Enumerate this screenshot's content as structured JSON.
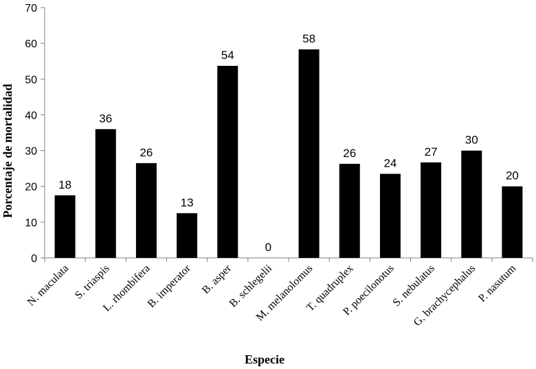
{
  "chart_data": {
    "type": "bar",
    "title": "",
    "xlabel": "Especie",
    "ylabel": "Porcentaje de mortalidad",
    "ylim": [
      0,
      70
    ],
    "yticks": [
      0,
      10,
      20,
      30,
      40,
      50,
      60,
      70
    ],
    "grid": false,
    "bar_color": "#000000",
    "categories": [
      "N. maculata",
      "S. triaspis",
      "L. rhombifera",
      "B. imperator",
      "B. asper",
      "B. schlegelii",
      "M. melanolomus",
      "T. quadruplex",
      "P. poecilonotus",
      "S. nebulatus",
      "G. brachycephalus",
      "P. nasutum"
    ],
    "values": [
      17.5,
      36,
      26.5,
      12.5,
      53.7,
      0,
      58.3,
      26.3,
      23.5,
      26.7,
      30,
      20
    ],
    "data_labels": [
      "18",
      "36",
      "26",
      "13",
      "54",
      "0",
      "58",
      "26",
      "24",
      "27",
      "30",
      "20"
    ]
  }
}
